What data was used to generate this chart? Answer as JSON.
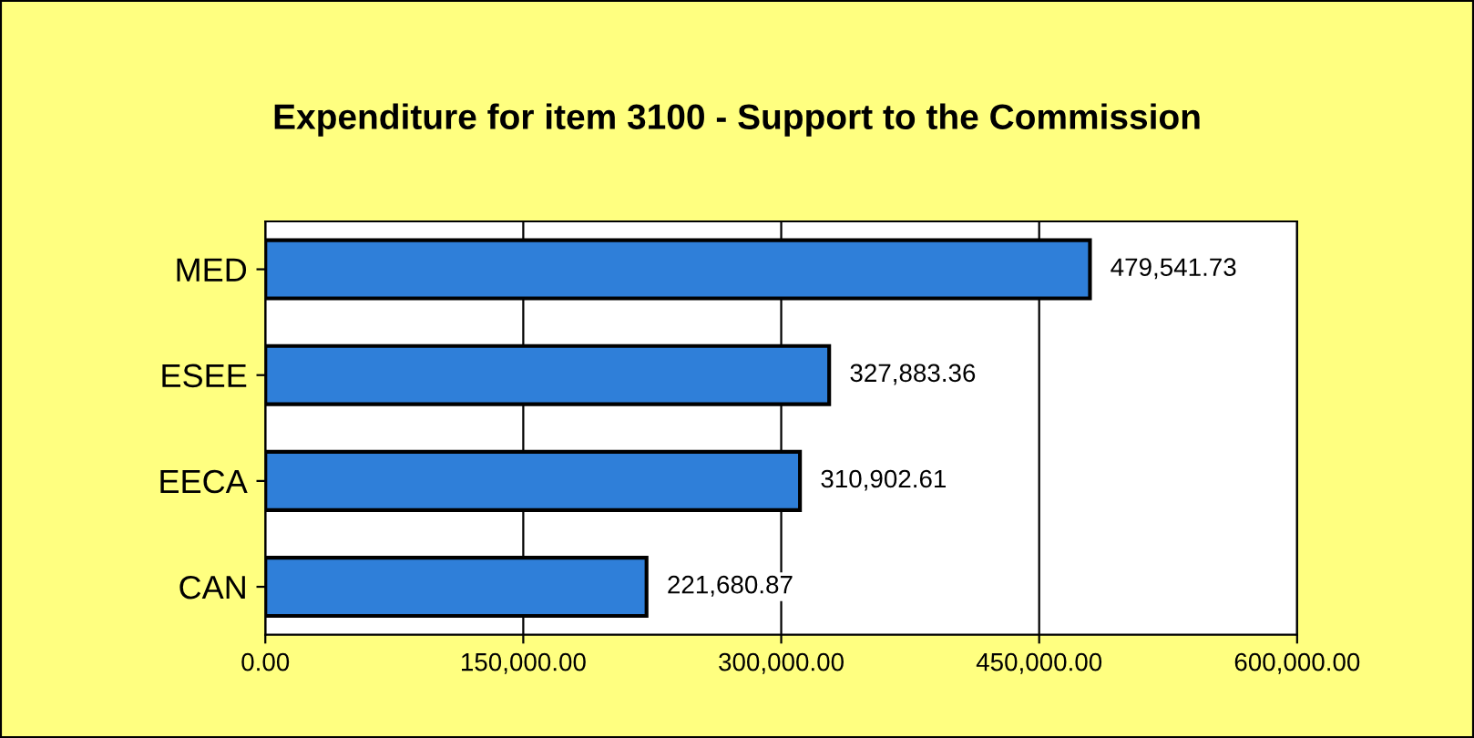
{
  "chart_data": {
    "type": "bar",
    "orientation": "horizontal",
    "title": "Expenditure for item 3100 - Support to the Commission",
    "categories": [
      "MED",
      "ESEE",
      "EECA",
      "CAN"
    ],
    "values": [
      479541.73,
      327883.36,
      310902.61,
      221680.87
    ],
    "value_labels": [
      "479,541.73",
      "327,883.36",
      "310,902.61",
      "221,680.87"
    ],
    "color": "#2f7fd9",
    "xlim": [
      0,
      600000
    ],
    "xticks": [
      {
        "value": 0,
        "label": "0.00"
      },
      {
        "value": 150000,
        "label": "150,000.00"
      },
      {
        "value": 300000,
        "label": "300,000.00"
      },
      {
        "value": 450000,
        "label": "450,000.00"
      },
      {
        "value": 600000,
        "label": "600,000.00"
      }
    ],
    "grid": "x"
  }
}
